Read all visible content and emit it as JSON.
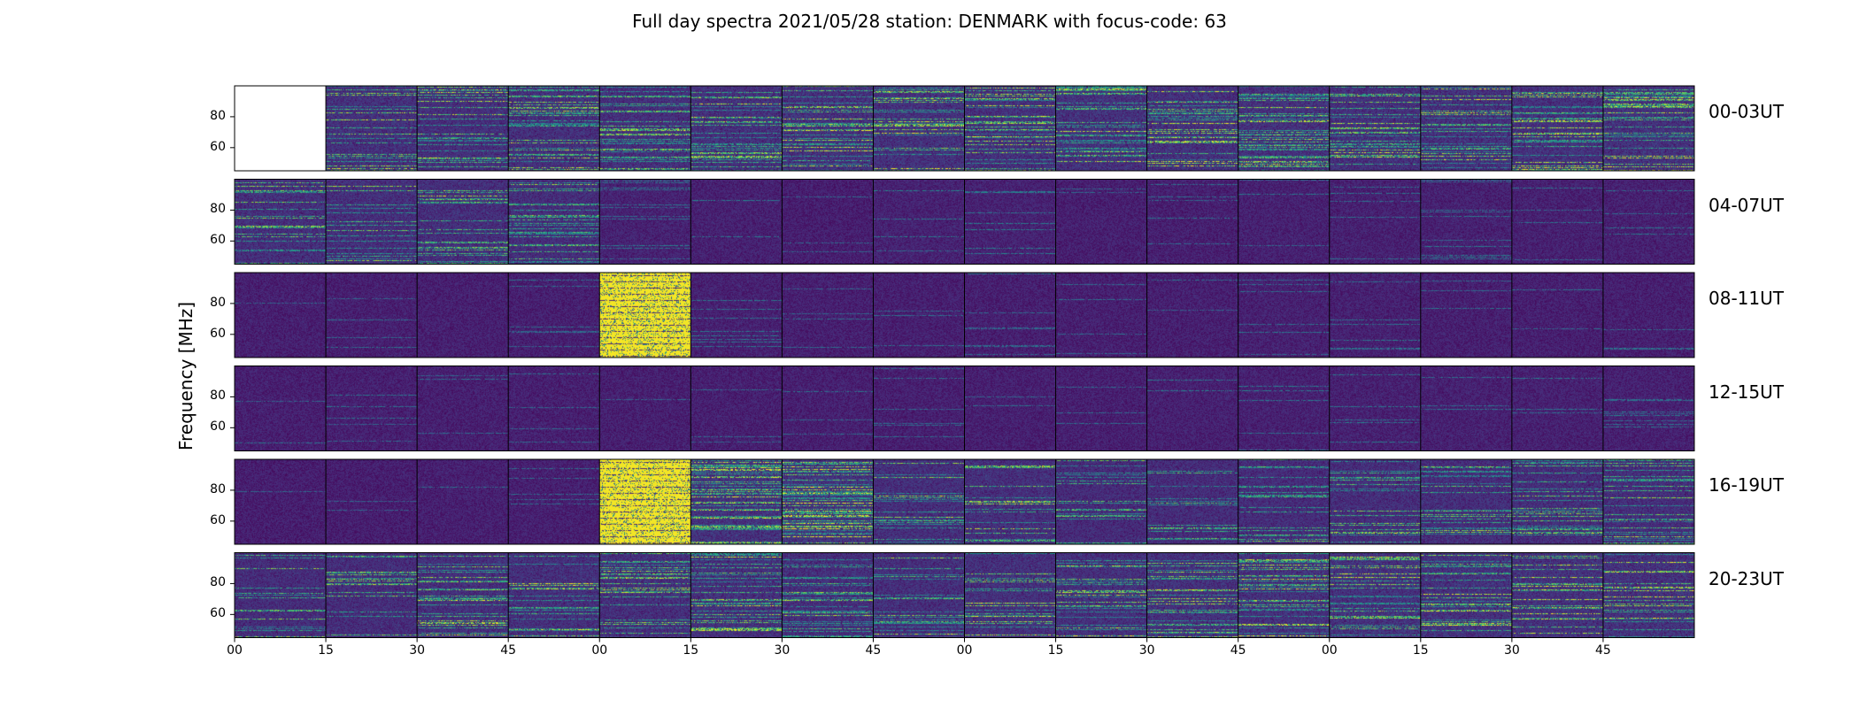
{
  "chart_data": {
    "type": "heatmap",
    "title": "Full day spectra 2021/05/28 station: DENMARK with focus-code: 63",
    "ylabel": "Frequency [MHz]",
    "xlabel": "",
    "colormap": "viridis",
    "y_ticks": [
      "80",
      "60"
    ],
    "y_tick_values": [
      80,
      60
    ],
    "ylim": [
      45,
      100
    ],
    "x_ticks": [
      "00",
      "15",
      "30",
      "45",
      "00",
      "15",
      "30",
      "45",
      "00",
      "15",
      "30",
      "45",
      "00",
      "15",
      "30",
      "45"
    ],
    "columns_per_row": 16,
    "minutes_per_panel": 15,
    "rows": [
      {
        "label": "00-03UT",
        "activity": [
          null,
          0.75,
          0.7,
          0.7,
          0.7,
          0.75,
          0.8,
          0.8,
          0.75,
          0.8,
          0.8,
          0.75,
          0.75,
          0.75,
          0.8,
          0.8
        ]
      },
      {
        "label": "04-07UT",
        "activity": [
          0.7,
          0.7,
          0.7,
          0.65,
          0.2,
          0.15,
          0.05,
          0.2,
          0.2,
          0.1,
          0.1,
          0.15,
          0.15,
          0.15,
          0.15,
          0.15
        ]
      },
      {
        "label": "08-11UT",
        "activity": [
          0.1,
          0.1,
          0.1,
          0.1,
          1.0,
          0.15,
          0.1,
          0.1,
          0.1,
          0.1,
          0.1,
          0.15,
          0.15,
          0.1,
          0.1,
          0.1
        ]
      },
      {
        "label": "12-15UT",
        "activity": [
          0.1,
          0.1,
          0.1,
          0.1,
          0.1,
          0.1,
          0.1,
          0.1,
          0.1,
          0.1,
          0.15,
          0.15,
          0.15,
          0.15,
          0.15,
          0.15
        ]
      },
      {
        "label": "16-19UT",
        "activity": [
          0.05,
          0.05,
          0.1,
          0.1,
          1.0,
          0.85,
          0.9,
          0.7,
          0.7,
          0.55,
          0.6,
          0.6,
          0.65,
          0.65,
          0.65,
          0.65
        ]
      },
      {
        "label": "20-23UT",
        "activity": [
          0.6,
          0.65,
          0.7,
          0.75,
          0.7,
          0.75,
          0.7,
          0.7,
          0.75,
          0.75,
          0.8,
          0.8,
          0.85,
          0.85,
          0.8,
          0.8
        ]
      }
    ]
  }
}
